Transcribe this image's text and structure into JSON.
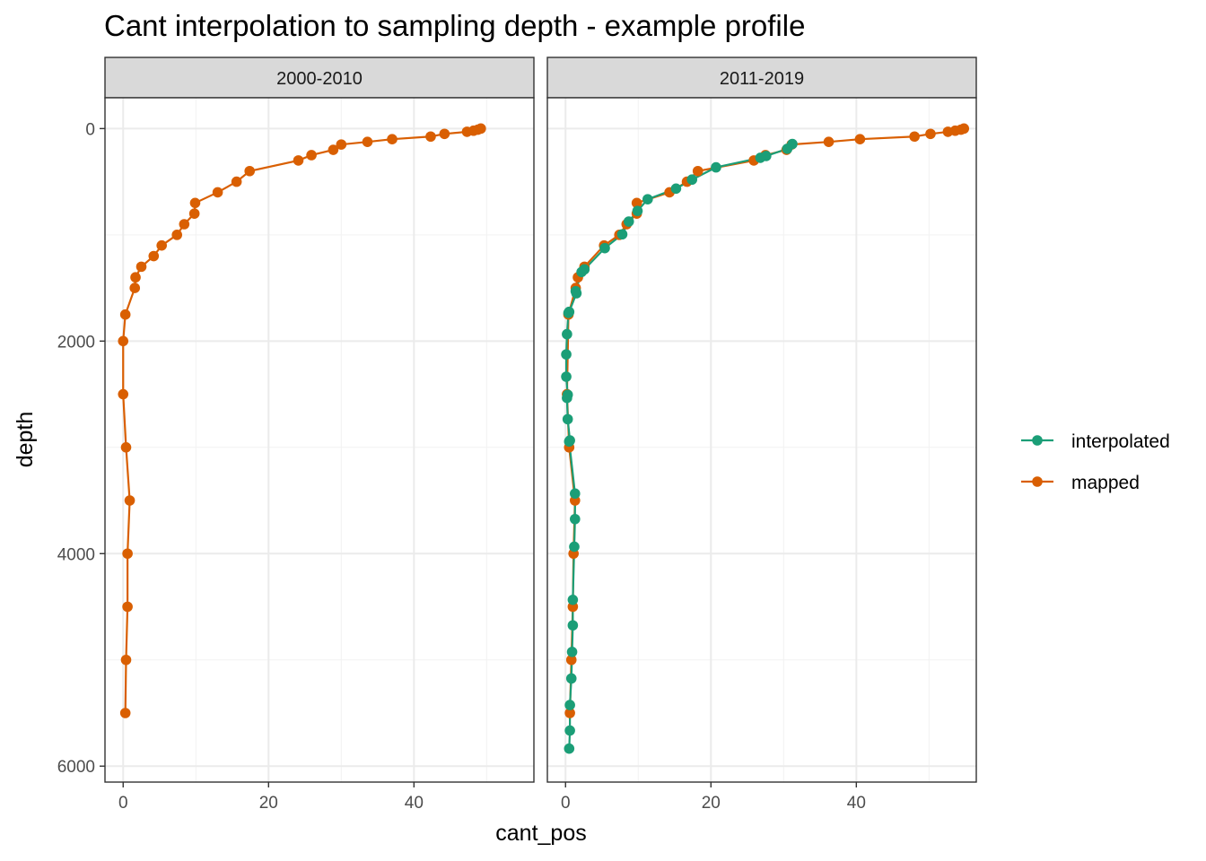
{
  "chart_data": {
    "type": "line",
    "title": "Cant interpolation to sampling depth - example profile",
    "xlabel": "cant_pos",
    "ylabel": "depth",
    "xlim": [
      -2.5,
      56.5
    ],
    "ylim": [
      6150,
      -290
    ],
    "y_reversed": true,
    "x_ticks": [
      0,
      20,
      40
    ],
    "y_ticks": [
      0,
      2000,
      4000,
      6000
    ],
    "x_minor": [
      10,
      30,
      50
    ],
    "y_minor": [
      1000,
      3000,
      5000
    ],
    "grid": true,
    "legend_position": "right",
    "legend": [
      {
        "name": "interpolated",
        "color": "#1b9e77"
      },
      {
        "name": "mapped",
        "color": "#d95f02"
      }
    ],
    "panels": [
      {
        "strip": "2000-2010",
        "series": [
          {
            "name": "mapped",
            "color": "#d95f02",
            "points": [
              [
                49.2,
                0
              ],
              [
                48.8,
                10
              ],
              [
                48.2,
                20
              ],
              [
                47.3,
                30
              ],
              [
                44.2,
                50
              ],
              [
                42.3,
                75
              ],
              [
                37,
                100
              ],
              [
                33.6,
                125
              ],
              [
                30,
                150
              ],
              [
                28.9,
                200
              ],
              [
                25.9,
                250
              ],
              [
                24.1,
                300
              ],
              [
                17.4,
                400
              ],
              [
                15.6,
                500
              ],
              [
                13,
                600
              ],
              [
                9.9,
                700
              ],
              [
                9.8,
                800
              ],
              [
                8.4,
                900
              ],
              [
                7.4,
                1000
              ],
              [
                5.3,
                1100
              ],
              [
                4.2,
                1200
              ],
              [
                2.5,
                1300
              ],
              [
                1.7,
                1400
              ],
              [
                1.6,
                1500
              ],
              [
                0.3,
                1750
              ],
              [
                0,
                2000
              ],
              [
                0,
                2500
              ],
              [
                0.4,
                3000
              ],
              [
                0.9,
                3500
              ],
              [
                0.6,
                4000
              ],
              [
                0.6,
                4500
              ],
              [
                0.4,
                5000
              ],
              [
                0.3,
                5500
              ]
            ]
          }
        ]
      },
      {
        "strip": "2011-2019",
        "series": [
          {
            "name": "mapped",
            "color": "#d95f02",
            "points": [
              [
                54.8,
                0
              ],
              [
                54.4,
                10
              ],
              [
                53.6,
                20
              ],
              [
                52.6,
                30
              ],
              [
                50.2,
                50
              ],
              [
                48,
                75
              ],
              [
                40.5,
                100
              ],
              [
                36.2,
                125
              ],
              [
                31.1,
                150
              ],
              [
                30.4,
                200
              ],
              [
                27.5,
                250
              ],
              [
                25.9,
                300
              ],
              [
                18.2,
                400
              ],
              [
                16.7,
                500
              ],
              [
                14.3,
                600
              ],
              [
                9.8,
                700
              ],
              [
                9.8,
                800
              ],
              [
                8.4,
                900
              ],
              [
                7.4,
                1000
              ],
              [
                5.3,
                1100
              ],
              [
                2.6,
                1300
              ],
              [
                1.7,
                1400
              ],
              [
                1.4,
                1500
              ],
              [
                0.4,
                1750
              ],
              [
                0.2,
                2500
              ],
              [
                0.5,
                3000
              ],
              [
                1.3,
                3500
              ],
              [
                1.1,
                4000
              ],
              [
                1,
                4500
              ],
              [
                0.8,
                5000
              ],
              [
                0.6,
                5500
              ]
            ]
          },
          {
            "name": "interpolated",
            "color": "#1b9e77",
            "points": [
              [
                31.2,
                145
              ],
              [
                30.5,
                190
              ],
              [
                27.6,
                258
              ],
              [
                26.8,
                275
              ],
              [
                20.7,
                365
              ],
              [
                17.4,
                480
              ],
              [
                15.2,
                565
              ],
              [
                11.3,
                665
              ],
              [
                9.9,
                775
              ],
              [
                8.7,
                875
              ],
              [
                7.8,
                995
              ],
              [
                5.4,
                1125
              ],
              [
                2.6,
                1325
              ],
              [
                2.2,
                1350
              ],
              [
                1.4,
                1530
              ],
              [
                1.5,
                1550
              ],
              [
                0.5,
                1725
              ],
              [
                0.4,
                1735
              ],
              [
                0.2,
                1935
              ],
              [
                0.1,
                2125
              ],
              [
                0.1,
                2335
              ],
              [
                0.3,
                2505
              ],
              [
                0.2,
                2535
              ],
              [
                0.3,
                2735
              ],
              [
                0.6,
                2935
              ],
              [
                0.5,
                2945
              ],
              [
                1.3,
                3435
              ],
              [
                1.3,
                3675
              ],
              [
                1.2,
                3935
              ],
              [
                1,
                4435
              ],
              [
                1,
                4675
              ],
              [
                0.9,
                4925
              ],
              [
                0.8,
                5175
              ],
              [
                0.6,
                5425
              ],
              [
                0.6,
                5665
              ],
              [
                0.5,
                5835
              ]
            ]
          }
        ]
      }
    ]
  }
}
